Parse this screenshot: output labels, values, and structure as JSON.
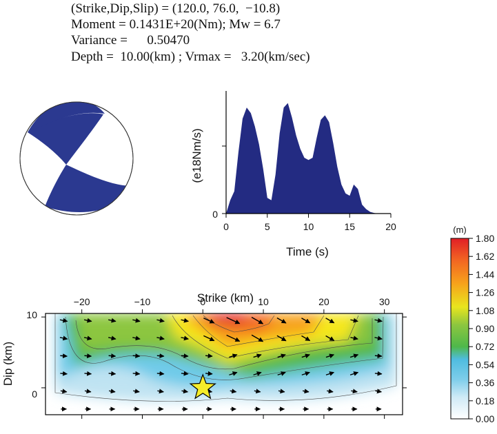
{
  "header": {
    "line1": "(Strike,Dip,Slip) = (120.0, 76.0,  −10.8)",
    "line2": "Moment = 0.1431E+20(Nm); Mw = 6.7",
    "line3": "Variance =      0.50470",
    "line4": "Depth =  10.00(km) ; Vrmax =   3.20(km/sec)"
  },
  "colors": {
    "beachball_fill": "#2b3990",
    "stf_fill": "#232b82",
    "colorbar": [
      "#ffffff",
      "#bfe3f2",
      "#6fcbe9",
      "#55bde0",
      "#4fb84a",
      "#8cc63f",
      "#f5e71f",
      "#f7a21b",
      "#f26522",
      "#e11f26"
    ]
  },
  "chart_data": [
    {
      "type": "area",
      "xlabel": "Time (s)",
      "ylabel": "(e18Nm/s)",
      "xlim": [
        0,
        20
      ],
      "ylim": [
        0,
        1
      ],
      "xticks": [
        "0",
        "5",
        "10",
        "15",
        "20"
      ],
      "yticks": [
        "0"
      ],
      "x": [
        0,
        0.5,
        1.0,
        1.5,
        2.0,
        2.5,
        3.0,
        3.5,
        4.0,
        4.5,
        5.0,
        5.5,
        6.0,
        6.5,
        7.0,
        7.5,
        8.0,
        8.5,
        9.0,
        9.5,
        10.0,
        10.5,
        11.0,
        11.5,
        12.0,
        12.5,
        13.0,
        13.5,
        14.0,
        14.5,
        15.0,
        15.5,
        16.0,
        16.5,
        17.0,
        17.5,
        18.0,
        18.5
      ],
      "values": [
        0,
        0.12,
        0.2,
        0.55,
        0.85,
        0.95,
        0.9,
        0.78,
        0.62,
        0.4,
        0.14,
        0.12,
        0.35,
        0.72,
        0.95,
        0.99,
        0.86,
        0.7,
        0.58,
        0.5,
        0.48,
        0.5,
        0.68,
        0.84,
        0.88,
        0.82,
        0.63,
        0.42,
        0.26,
        0.18,
        0.16,
        0.26,
        0.22,
        0.08,
        0.04,
        0.015,
        0.005,
        0
      ]
    },
    {
      "type": "heatmap",
      "title": "Strike (km)",
      "xlabel": "Strike (km)",
      "ylabel": "Dip (km)",
      "xlim": [
        -26,
        33
      ],
      "ylim": [
        -3.8,
        10.5
      ],
      "xticks": [
        "−20",
        "−10",
        "0",
        "10",
        "20",
        "30"
      ],
      "yticks": [
        "10",
        "0"
      ],
      "hypocenter": {
        "x": 0,
        "y": 0
      },
      "colorbar": {
        "unit": "(m)",
        "ticks": [
          "1.80",
          "1.62",
          "1.44",
          "1.26",
          "1.08",
          "0.90",
          "0.72",
          "0.54",
          "0.36",
          "0.18",
          "0.00"
        ],
        "range": [
          0,
          1.8
        ]
      },
      "slip_peaks": [
        {
          "x": 2,
          "y": 10,
          "slip": 1.8
        },
        {
          "x": 13,
          "y": 8,
          "slip": 1.2
        },
        {
          "x": -18,
          "y": 8,
          "slip": 0.8
        },
        {
          "x": 25,
          "y": 8,
          "slip": 0.8
        },
        {
          "x": -8,
          "y": 4,
          "slip": 0.65
        }
      ]
    }
  ]
}
